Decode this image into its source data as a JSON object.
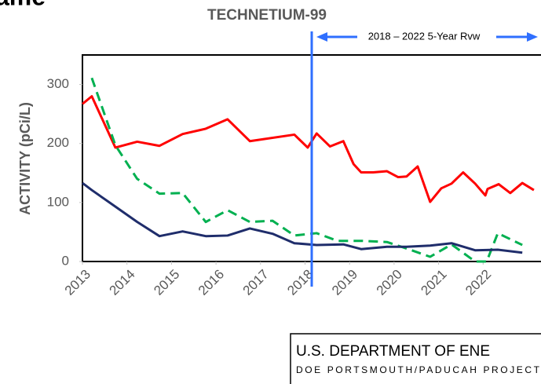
{
  "top_fragment": "ame",
  "chart_data": {
    "type": "line",
    "title": "TECHNETIUM-99",
    "y_label": "ACTIVITY (pCi/L)",
    "annotation": {
      "text": "2018 – 2022 5-Year Rvw",
      "x": 2018.15
    },
    "xlim": [
      2013,
      2023.3
    ],
    "xticks": [
      2013,
      2014,
      2015,
      2016,
      2017,
      2018,
      2019,
      2020,
      2021,
      2022
    ],
    "ylim": [
      0,
      350
    ],
    "yticks": [
      0,
      100,
      200,
      300
    ],
    "series": [
      {
        "color": "#ff0000",
        "dash": false,
        "x": [
          2013.0,
          2013.21,
          2013.74,
          2014.23,
          2014.73,
          2015.25,
          2015.77,
          2016.26,
          2016.76,
          2017.76,
          2018.06,
          2018.26,
          2018.56,
          2018.86,
          2019.09,
          2019.26,
          2019.53,
          2019.84,
          2020.09,
          2020.28,
          2020.53,
          2020.81,
          2021.06,
          2021.29,
          2021.55,
          2021.82,
          2022.05,
          2022.1,
          2022.35,
          2022.61,
          2022.88,
          2023.14
        ],
        "values": [
          267,
          280,
          193,
          203,
          196,
          216,
          225,
          241,
          204,
          215,
          193,
          217,
          195,
          204,
          165,
          151,
          151,
          153,
          143,
          144,
          161,
          101,
          124,
          132,
          151,
          132,
          112,
          123,
          131,
          116,
          133,
          121
        ]
      },
      {
        "color": "#00b050",
        "dash": true,
        "x": [
          2013.21,
          2013.74,
          2014.23,
          2014.73,
          2015.25,
          2015.77,
          2016.26,
          2016.76,
          2017.27,
          2017.76,
          2018.26,
          2018.73,
          2019.26,
          2019.84,
          2020.32,
          2020.81,
          2021.29,
          2021.82,
          2022.08,
          2022.33,
          2022.88
        ],
        "values": [
          311,
          197,
          140,
          115,
          116,
          67,
          87,
          67,
          69,
          44,
          48,
          35,
          35,
          33,
          21,
          8,
          29,
          0,
          0,
          48,
          28
        ]
      },
      {
        "color": "#1f2d6b",
        "dash": false,
        "x": [
          2013.0,
          2013.21,
          2013.74,
          2014.23,
          2014.73,
          2015.25,
          2015.77,
          2016.26,
          2016.76,
          2017.27,
          2017.76,
          2018.26,
          2018.86,
          2019.26,
          2019.84,
          2020.28,
          2020.81,
          2021.29,
          2021.82,
          2022.33,
          2022.88
        ],
        "values": [
          133,
          121,
          93,
          67,
          43,
          51,
          43,
          44,
          56,
          47,
          31,
          28,
          29,
          21,
          25,
          25,
          27,
          31,
          19,
          20,
          15
        ]
      }
    ]
  },
  "footer": {
    "line1": "U.S. DEPARTMENT OF ENE",
    "line2": "DOE PORTSMOUTH/PADUCAH PROJECT"
  }
}
